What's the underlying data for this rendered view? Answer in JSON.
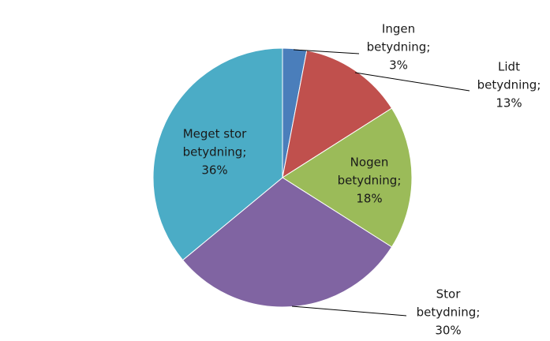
{
  "chart_data": {
    "type": "pie",
    "values": [
      3,
      13,
      18,
      30,
      36
    ],
    "value_labels": [
      [
        "Ingen",
        "betydning;",
        "3%"
      ],
      [
        "Lidt",
        "betydning;",
        "13%"
      ],
      [
        "Nogen",
        "betydning;",
        "18%"
      ],
      [
        "Stor",
        "betydning;",
        "30%"
      ],
      [
        "Meget stor",
        "betydning;",
        "36%"
      ]
    ],
    "colors": [
      "#4a7ebb",
      "#c0504d",
      "#9bbb59",
      "#8064a2",
      "#4bacc6"
    ]
  }
}
